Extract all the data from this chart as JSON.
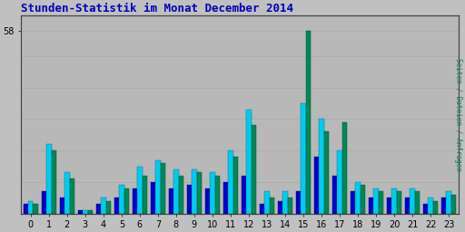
{
  "title": "Stunden-Statistik im Monat December 2014",
  "title_color": "#0000bb",
  "background_color": "#c0c0c0",
  "plot_bg_color": "#b8b8b8",
  "ylabel_right": "Seiten / Dateien / Anfragen",
  "hours": [
    0,
    1,
    2,
    3,
    4,
    5,
    6,
    7,
    8,
    9,
    10,
    11,
    12,
    13,
    14,
    15,
    16,
    17,
    18,
    19,
    20,
    21,
    22,
    23
  ],
  "seiten": [
    3,
    7,
    5,
    1,
    3,
    5,
    8,
    10,
    8,
    9,
    8,
    10,
    12,
    3,
    4,
    7,
    18,
    12,
    7,
    5,
    5,
    5,
    3,
    5
  ],
  "dateien": [
    4,
    22,
    13,
    1,
    5,
    9,
    15,
    17,
    14,
    14,
    13,
    20,
    33,
    7,
    7,
    35,
    30,
    20,
    10,
    8,
    8,
    8,
    5,
    7
  ],
  "anfragen": [
    3,
    20,
    11,
    1,
    4,
    8,
    12,
    16,
    12,
    13,
    12,
    18,
    28,
    5,
    5,
    58,
    26,
    29,
    9,
    7,
    7,
    7,
    4,
    6
  ],
  "color_seiten": "#0000cc",
  "color_dateien": "#00ccee",
  "color_anfragen": "#008855",
  "ylim": [
    0,
    63
  ],
  "bar_width": 0.27,
  "figsize": [
    5.12,
    2.56
  ],
  "dpi": 100,
  "grid_color": "#aaaaaa",
  "grid_levels": [
    10,
    20,
    30,
    40,
    50
  ],
  "ytick_val": 58,
  "ytick_label": "58",
  "title_fontsize": 9,
  "tick_fontsize": 7
}
